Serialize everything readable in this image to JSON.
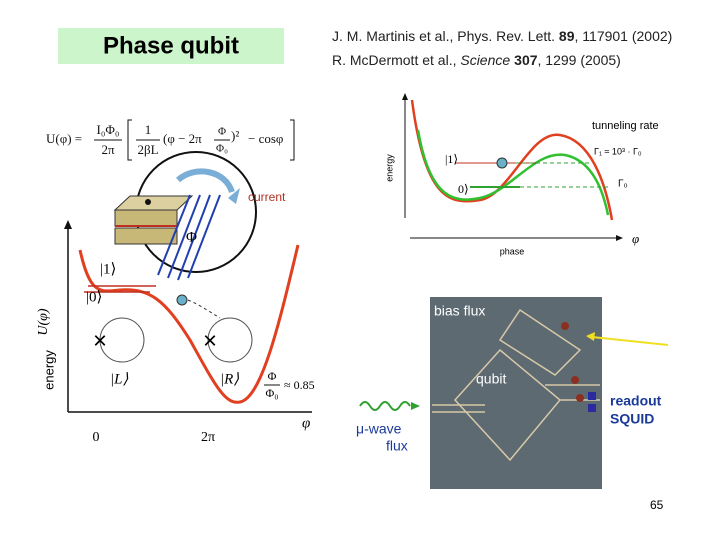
{
  "header": {
    "title": "Phase qubit"
  },
  "references": [
    {
      "authors": "J. M. Martinis et al., Phys. Rev. Lett. ",
      "volume": "89",
      "pages": ", 117901 (2002)"
    },
    {
      "authors": "R. McDermott et al., ",
      "journal": "Science",
      "volume": "307",
      "pages": ", 1299 (2005)"
    }
  ],
  "equation": {
    "lhs": "U(φ) =",
    "prefactor_numerator": "I₀Φ₀",
    "prefactor_denominator": "2π",
    "inner_numerator": "1",
    "inner_denominator": "2βL",
    "term": "(φ − 2π",
    "flux_numerator": "Φ",
    "flux_denominator": "Φ₀",
    "square": ")²",
    "cosine": "− cosφ"
  },
  "junction_diagram": {
    "current_label": "current",
    "flux_label": "Φ"
  },
  "potential_plot": {
    "y_label_energy": "energy",
    "y_label_potential": "U(φ)",
    "x_label": "φ",
    "x_tick_zero": "0",
    "x_tick_two_pi": "2π",
    "state_excited": "|1⟩",
    "state_ground": "|0⟩",
    "state_left": "|L⟩",
    "state_right": "|R⟩",
    "flux_ratio_numerator": "Φ",
    "flux_ratio_denominator": "Φ₀",
    "flux_ratio_value": "≈ 0.85"
  },
  "tunneling_plot": {
    "y_label": "energy",
    "x_label": "phase",
    "x_symbol": "φ",
    "state_excited": "|1⟩",
    "state_ground": "0⟩",
    "title": "tunneling rate",
    "rate_relation": "Γ₁ ≈ 10³ · Γ₀",
    "rate_ground": "Γ₀"
  },
  "device_image": {
    "bias_flux": "bias flux",
    "qubit": "qubit",
    "readout_line1": "readout",
    "readout_line2": "SQUID",
    "microwave_line1": "μ-wave",
    "microwave_line2": "flux"
  },
  "footer": {
    "page_number": "65"
  }
}
